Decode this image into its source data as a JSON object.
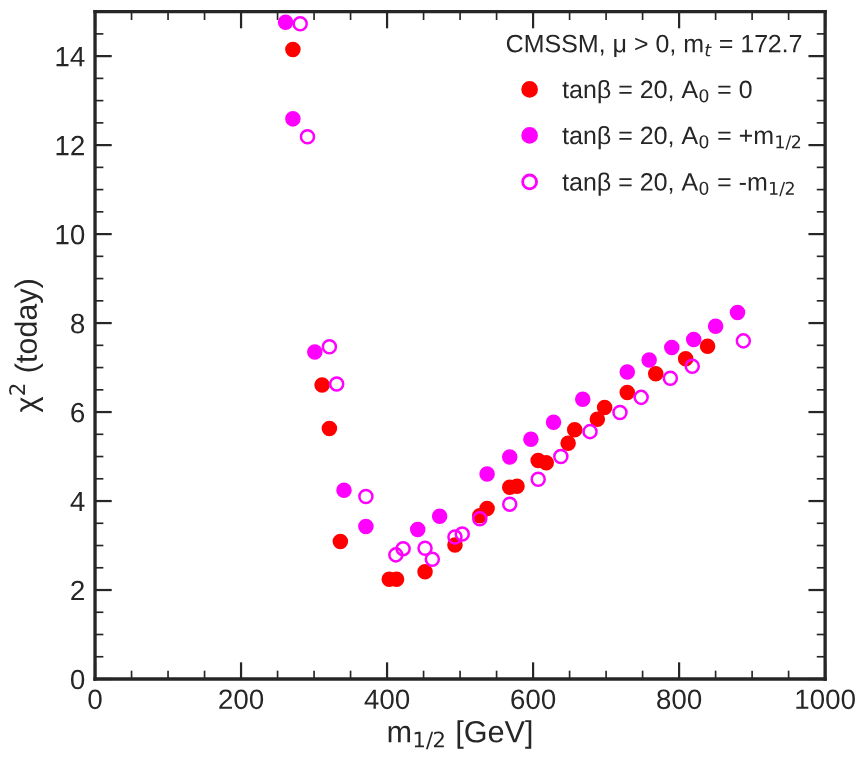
{
  "chart_data": {
    "type": "scatter",
    "xlabel": "m$_{1/2}$ [GeV]",
    "ylabel": "χ$^{2}$ (today)",
    "legend_title": "CMSSM, μ > 0, m$_{t}$ = 172.7",
    "xlim": [
      0,
      1000
    ],
    "ylim": [
      0,
      15
    ],
    "xticks": [
      0,
      200,
      400,
      600,
      800,
      1000
    ],
    "yticks": [
      0,
      2,
      4,
      6,
      8,
      10,
      12,
      14
    ],
    "grid": false,
    "legend": "top right",
    "marker": "circle",
    "series": [
      {
        "name": "tanβ = 20, A$_{0}$ = 0",
        "color": "#ff0000",
        "x": [
          271,
          311,
          321,
          336,
          403,
          413,
          452,
          493,
          527,
          537,
          568,
          578,
          607,
          618,
          648,
          657,
          688,
          698,
          729,
          768,
          809,
          839
        ],
        "values": [
          14.15,
          6.61,
          5.63,
          3.09,
          2.24,
          2.24,
          2.41,
          3.01,
          3.67,
          3.83,
          4.31,
          4.33,
          4.91,
          4.86,
          5.3,
          5.6,
          5.84,
          6.1,
          6.44,
          6.86,
          7.2,
          7.48
        ]
      },
      {
        "name": "tanβ = 20, A$_{0}$ = +m$_{1/2}$",
        "color": "#ff00ff",
        "x": [
          261,
          271,
          301,
          341,
          371,
          442,
          472,
          537,
          568,
          597,
          628,
          668,
          729,
          759,
          790,
          820,
          850,
          880
        ],
        "values": [
          14.76,
          12.59,
          7.35,
          4.24,
          3.43,
          3.36,
          3.66,
          4.61,
          4.99,
          5.39,
          5.77,
          6.29,
          6.9,
          7.17,
          7.45,
          7.63,
          7.93,
          8.24
        ]
      },
      {
        "name": "tanβ = 20, A$_{0}$ = -m$_{1/2}$",
        "color": "#ff00ff",
        "x": [
          281,
          291,
          321,
          331,
          371,
          412,
          422,
          452,
          462,
          493,
          503,
          527,
          568,
          607,
          638,
          678,
          719,
          748,
          788,
          818,
          888
        ],
        "values": [
          14.73,
          12.19,
          7.47,
          6.63,
          4.1,
          2.79,
          2.93,
          2.94,
          2.69,
          3.19,
          3.26,
          3.6,
          3.93,
          4.49,
          5.0,
          5.56,
          5.99,
          6.33,
          6.76,
          7.03,
          7.6
        ]
      }
    ]
  }
}
